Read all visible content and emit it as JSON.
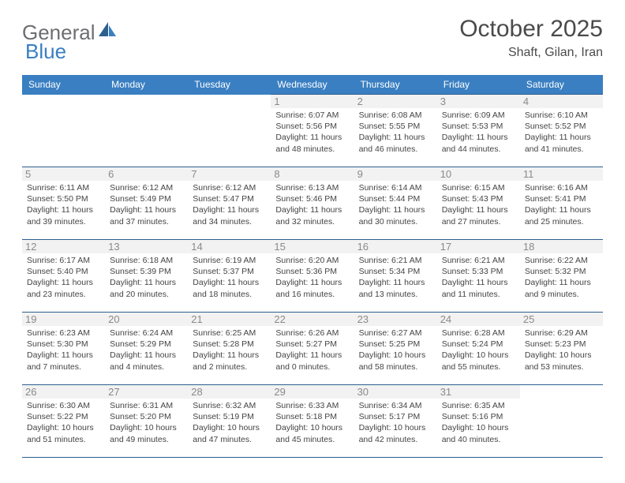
{
  "logo": {
    "text1": "General",
    "text2": "Blue"
  },
  "title": "October 2025",
  "location": "Shaft, Gilan, Iran",
  "headerColor": "#3a7fc2",
  "borderColor": "#2d5f8f",
  "dayHeaders": [
    "Sunday",
    "Monday",
    "Tuesday",
    "Wednesday",
    "Thursday",
    "Friday",
    "Saturday"
  ],
  "weeks": [
    [
      null,
      null,
      null,
      {
        "d": "1",
        "sr": "6:07 AM",
        "ss": "5:56 PM",
        "dl": "11 hours and 48 minutes."
      },
      {
        "d": "2",
        "sr": "6:08 AM",
        "ss": "5:55 PM",
        "dl": "11 hours and 46 minutes."
      },
      {
        "d": "3",
        "sr": "6:09 AM",
        "ss": "5:53 PM",
        "dl": "11 hours and 44 minutes."
      },
      {
        "d": "4",
        "sr": "6:10 AM",
        "ss": "5:52 PM",
        "dl": "11 hours and 41 minutes."
      }
    ],
    [
      {
        "d": "5",
        "sr": "6:11 AM",
        "ss": "5:50 PM",
        "dl": "11 hours and 39 minutes."
      },
      {
        "d": "6",
        "sr": "6:12 AM",
        "ss": "5:49 PM",
        "dl": "11 hours and 37 minutes."
      },
      {
        "d": "7",
        "sr": "6:12 AM",
        "ss": "5:47 PM",
        "dl": "11 hours and 34 minutes."
      },
      {
        "d": "8",
        "sr": "6:13 AM",
        "ss": "5:46 PM",
        "dl": "11 hours and 32 minutes."
      },
      {
        "d": "9",
        "sr": "6:14 AM",
        "ss": "5:44 PM",
        "dl": "11 hours and 30 minutes."
      },
      {
        "d": "10",
        "sr": "6:15 AM",
        "ss": "5:43 PM",
        "dl": "11 hours and 27 minutes."
      },
      {
        "d": "11",
        "sr": "6:16 AM",
        "ss": "5:41 PM",
        "dl": "11 hours and 25 minutes."
      }
    ],
    [
      {
        "d": "12",
        "sr": "6:17 AM",
        "ss": "5:40 PM",
        "dl": "11 hours and 23 minutes."
      },
      {
        "d": "13",
        "sr": "6:18 AM",
        "ss": "5:39 PM",
        "dl": "11 hours and 20 minutes."
      },
      {
        "d": "14",
        "sr": "6:19 AM",
        "ss": "5:37 PM",
        "dl": "11 hours and 18 minutes."
      },
      {
        "d": "15",
        "sr": "6:20 AM",
        "ss": "5:36 PM",
        "dl": "11 hours and 16 minutes."
      },
      {
        "d": "16",
        "sr": "6:21 AM",
        "ss": "5:34 PM",
        "dl": "11 hours and 13 minutes."
      },
      {
        "d": "17",
        "sr": "6:21 AM",
        "ss": "5:33 PM",
        "dl": "11 hours and 11 minutes."
      },
      {
        "d": "18",
        "sr": "6:22 AM",
        "ss": "5:32 PM",
        "dl": "11 hours and 9 minutes."
      }
    ],
    [
      {
        "d": "19",
        "sr": "6:23 AM",
        "ss": "5:30 PM",
        "dl": "11 hours and 7 minutes."
      },
      {
        "d": "20",
        "sr": "6:24 AM",
        "ss": "5:29 PM",
        "dl": "11 hours and 4 minutes."
      },
      {
        "d": "21",
        "sr": "6:25 AM",
        "ss": "5:28 PM",
        "dl": "11 hours and 2 minutes."
      },
      {
        "d": "22",
        "sr": "6:26 AM",
        "ss": "5:27 PM",
        "dl": "11 hours and 0 minutes."
      },
      {
        "d": "23",
        "sr": "6:27 AM",
        "ss": "5:25 PM",
        "dl": "10 hours and 58 minutes."
      },
      {
        "d": "24",
        "sr": "6:28 AM",
        "ss": "5:24 PM",
        "dl": "10 hours and 55 minutes."
      },
      {
        "d": "25",
        "sr": "6:29 AM",
        "ss": "5:23 PM",
        "dl": "10 hours and 53 minutes."
      }
    ],
    [
      {
        "d": "26",
        "sr": "6:30 AM",
        "ss": "5:22 PM",
        "dl": "10 hours and 51 minutes."
      },
      {
        "d": "27",
        "sr": "6:31 AM",
        "ss": "5:20 PM",
        "dl": "10 hours and 49 minutes."
      },
      {
        "d": "28",
        "sr": "6:32 AM",
        "ss": "5:19 PM",
        "dl": "10 hours and 47 minutes."
      },
      {
        "d": "29",
        "sr": "6:33 AM",
        "ss": "5:18 PM",
        "dl": "10 hours and 45 minutes."
      },
      {
        "d": "30",
        "sr": "6:34 AM",
        "ss": "5:17 PM",
        "dl": "10 hours and 42 minutes."
      },
      {
        "d": "31",
        "sr": "6:35 AM",
        "ss": "5:16 PM",
        "dl": "10 hours and 40 minutes."
      },
      null
    ]
  ],
  "labels": {
    "sunrise": "Sunrise: ",
    "sunset": "Sunset: ",
    "daylight": "Daylight: "
  }
}
